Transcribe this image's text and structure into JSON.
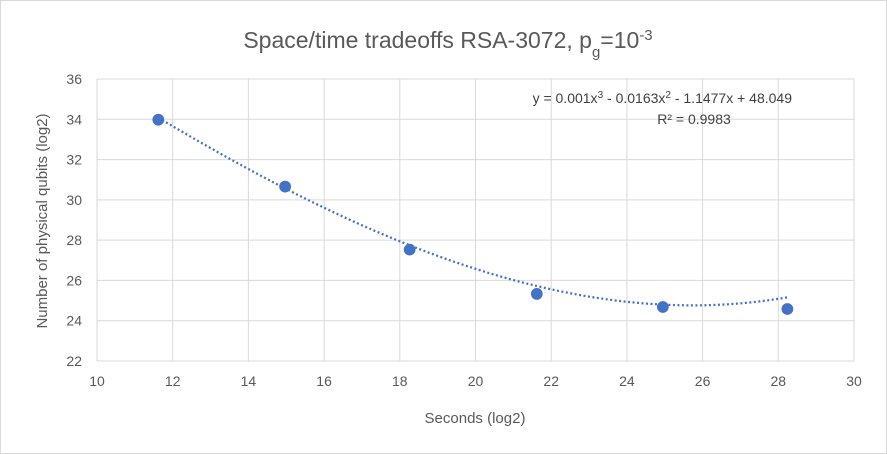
{
  "chart_data": {
    "type": "scatter",
    "title": {
      "main": "Space/time tradeoffs RSA-3072, p",
      "sub": "g",
      "mid": "=10",
      "sup": "-3"
    },
    "xlabel": "Seconds (log2)",
    "ylabel": "Number of physical qubits (log2)",
    "xlim": [
      10,
      30
    ],
    "ylim": [
      22,
      36
    ],
    "xticks": [
      10,
      12,
      14,
      16,
      18,
      20,
      22,
      24,
      26,
      28,
      30
    ],
    "yticks": [
      22,
      24,
      26,
      28,
      30,
      32,
      34,
      36
    ],
    "grid": true,
    "series": [
      {
        "x": [
          11.62,
          14.97,
          18.26,
          21.62,
          24.95,
          28.24
        ],
        "y": [
          33.98,
          30.66,
          27.53,
          25.33,
          24.68,
          24.58
        ],
        "color": "#4472c4"
      }
    ],
    "trendline": {
      "type": "polynomial",
      "coefficients": [
        0.001,
        -0.0163,
        -1.1477,
        48.049
      ],
      "color": "#4472c4",
      "style": "dotted"
    },
    "equation": {
      "p1": "y = 0.001x",
      "e1": "3",
      "p2": " - 0.0163x",
      "e2": "2",
      "p3": " - 1.1477x + 48.049",
      "r2": "R² = 0.9983"
    }
  }
}
